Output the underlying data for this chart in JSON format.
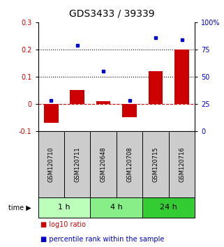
{
  "title": "GDS3433 / 39339",
  "samples": [
    "GSM120710",
    "GSM120711",
    "GSM120648",
    "GSM120708",
    "GSM120715",
    "GSM120716"
  ],
  "time_groups": [
    {
      "label": "1 h",
      "indices": [
        0,
        1
      ],
      "color": "#bbffbb"
    },
    {
      "label": "4 h",
      "indices": [
        2,
        3
      ],
      "color": "#88ee88"
    },
    {
      "label": "24 h",
      "indices": [
        4,
        5
      ],
      "color": "#33cc33"
    }
  ],
  "log10_ratio": [
    -0.07,
    0.05,
    0.01,
    -0.05,
    0.12,
    0.2
  ],
  "percentile_rank": [
    28,
    79,
    55,
    28,
    86,
    84
  ],
  "ylim_left": [
    -0.1,
    0.3
  ],
  "ylim_right": [
    0,
    100
  ],
  "left_ticks": [
    -0.1,
    0.0,
    0.1,
    0.2,
    0.3
  ],
  "right_ticks": [
    0,
    25,
    50,
    75,
    100
  ],
  "right_tick_labels": [
    "0",
    "25",
    "50",
    "75",
    "100%"
  ],
  "bar_color": "#cc0000",
  "dot_color": "#0000cc",
  "hline_color": "#cc0000",
  "dotted_line_color": "#000000",
  "sample_box_color": "#cccccc",
  "title_fontsize": 10,
  "tick_fontsize": 7,
  "sample_fontsize": 6,
  "time_fontsize": 8,
  "legend_fontsize": 7
}
